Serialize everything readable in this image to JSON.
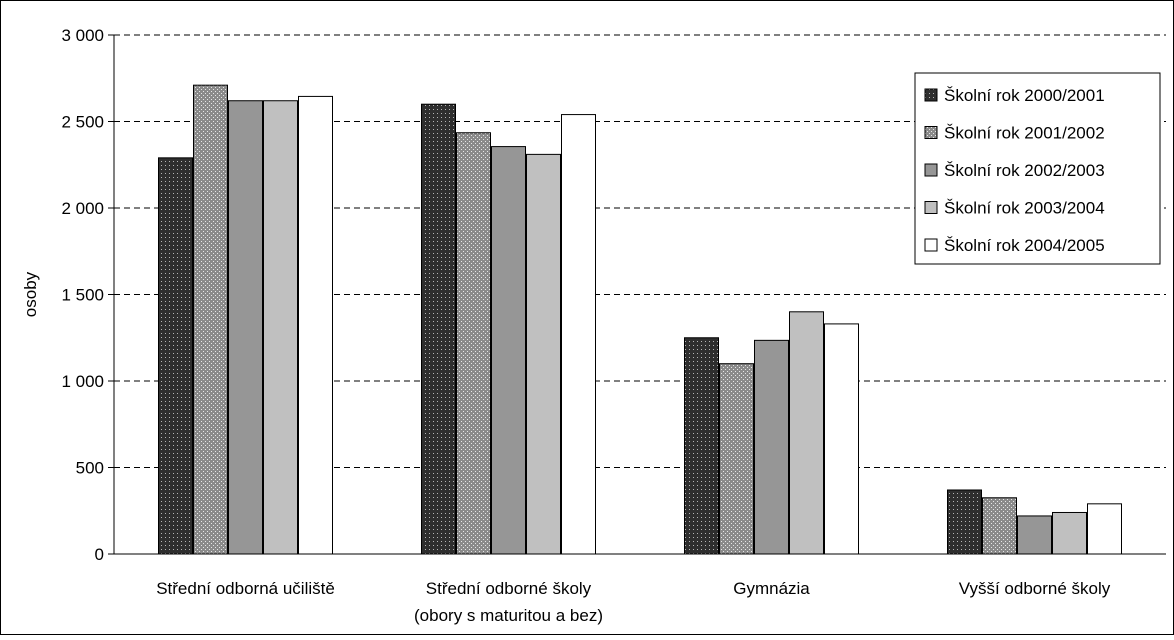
{
  "chart_data": {
    "type": "bar",
    "ylabel": "osoby",
    "ylim": [
      0,
      3000
    ],
    "yticks": [
      {
        "value": 0,
        "label": "0"
      },
      {
        "value": 500,
        "label": "500"
      },
      {
        "value": 1000,
        "label": "1 000"
      },
      {
        "value": 1500,
        "label": "1 500"
      },
      {
        "value": 2000,
        "label": "2 000"
      },
      {
        "value": 2500,
        "label": "2 500"
      },
      {
        "value": 3000,
        "label": "3 000"
      }
    ],
    "grid": "horizontal-dashed",
    "legend_position": "top-right",
    "categories": [
      [
        "Střední odborná učiliště"
      ],
      [
        "Střední odborné školy",
        "(obory s maturitou a bez)"
      ],
      [
        "Gymnázia"
      ],
      [
        "Vyšší odborné školy"
      ]
    ],
    "series": [
      {
        "name": "Školní rok 2000/2001",
        "fill": "#2e2e2e",
        "pattern": "dark-dots",
        "values": [
          2290,
          2600,
          1250,
          370
        ]
      },
      {
        "name": "Školní rok 2001/2002",
        "fill": "#8c8c8c",
        "pattern": "light-dots",
        "values": [
          2710,
          2435,
          1100,
          325
        ]
      },
      {
        "name": "Školní rok 2002/2003",
        "fill": "#969696",
        "pattern": "none",
        "values": [
          2620,
          2355,
          1235,
          220
        ]
      },
      {
        "name": "Školní rok 2003/2004",
        "fill": "#c0c0c0",
        "pattern": "none",
        "values": [
          2620,
          2310,
          1400,
          240
        ]
      },
      {
        "name": "Školní rok 2004/2005",
        "fill": "#ffffff",
        "pattern": "none",
        "values": [
          2645,
          2540,
          1330,
          290
        ]
      }
    ]
  }
}
